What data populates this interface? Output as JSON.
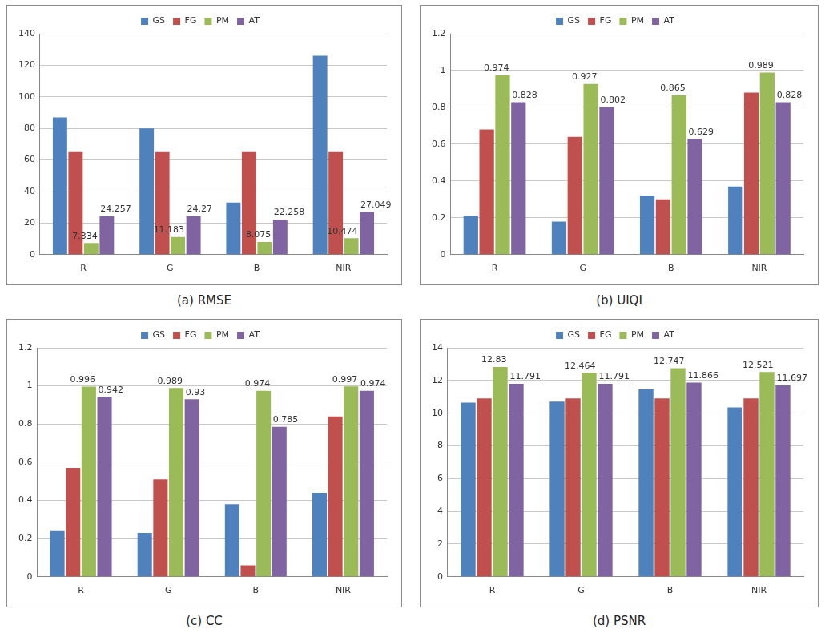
{
  "chart_data": [
    {
      "type": "bar",
      "title": "(a) RMSE",
      "categories": [
        "R",
        "G",
        "B",
        "NIR"
      ],
      "series": [
        {
          "name": "GS",
          "color": "#4f81bd",
          "values": [
            87,
            80,
            33,
            126
          ]
        },
        {
          "name": "FG",
          "color": "#c0504d",
          "values": [
            65,
            65,
            65,
            65
          ]
        },
        {
          "name": "PM",
          "color": "#9bbb59",
          "values": [
            7.334,
            11.183,
            8.075,
            10.474
          ],
          "data_labels": true
        },
        {
          "name": "AT",
          "color": "#8064a2",
          "values": [
            24.257,
            24.27,
            22.258,
            27.049
          ],
          "data_labels": true
        }
      ],
      "ylim": [
        0,
        140
      ],
      "yticks": [
        0,
        20,
        40,
        60,
        80,
        100,
        120,
        140
      ],
      "grid": true,
      "legend": "top"
    },
    {
      "type": "bar",
      "title": "(b) UIQI",
      "categories": [
        "R",
        "G",
        "B",
        "NIR"
      ],
      "series": [
        {
          "name": "GS",
          "color": "#4f81bd",
          "values": [
            0.21,
            0.18,
            0.32,
            0.37
          ]
        },
        {
          "name": "FG",
          "color": "#c0504d",
          "values": [
            0.68,
            0.64,
            0.3,
            0.88
          ]
        },
        {
          "name": "PM",
          "color": "#9bbb59",
          "values": [
            0.974,
            0.927,
            0.865,
            0.989
          ],
          "data_labels": true
        },
        {
          "name": "AT",
          "color": "#8064a2",
          "values": [
            0.828,
            0.802,
            0.629,
            0.828
          ],
          "data_labels": true
        }
      ],
      "ylim": [
        0,
        1.2
      ],
      "yticks": [
        0,
        0.2,
        0.4,
        0.6,
        0.8,
        1,
        1.2
      ],
      "grid": true,
      "legend": "top"
    },
    {
      "type": "bar",
      "title": "(c) CC",
      "categories": [
        "R",
        "G",
        "B",
        "NIR"
      ],
      "series": [
        {
          "name": "GS",
          "color": "#4f81bd",
          "values": [
            0.24,
            0.23,
            0.38,
            0.44
          ]
        },
        {
          "name": "FG",
          "color": "#c0504d",
          "values": [
            0.57,
            0.51,
            0.06,
            0.84
          ]
        },
        {
          "name": "PM",
          "color": "#9bbb59",
          "values": [
            0.996,
            0.989,
            0.974,
            0.997
          ],
          "data_labels": true
        },
        {
          "name": "AT",
          "color": "#8064a2",
          "values": [
            0.942,
            0.93,
            0.785,
            0.974
          ],
          "data_labels": true
        }
      ],
      "ylim": [
        0,
        1.2
      ],
      "yticks": [
        0,
        0.2,
        0.4,
        0.6,
        0.8,
        1,
        1.2
      ],
      "grid": true,
      "legend": "top"
    },
    {
      "type": "bar",
      "title": "(d) PSNR",
      "categories": [
        "R",
        "G",
        "B",
        "NIR"
      ],
      "series": [
        {
          "name": "GS",
          "color": "#4f81bd",
          "values": [
            10.65,
            10.7,
            11.45,
            10.35
          ]
        },
        {
          "name": "FG",
          "color": "#c0504d",
          "values": [
            10.9,
            10.9,
            10.9,
            10.9
          ]
        },
        {
          "name": "PM",
          "color": "#9bbb59",
          "values": [
            12.83,
            12.464,
            12.747,
            12.521
          ],
          "data_labels": true
        },
        {
          "name": "AT",
          "color": "#8064a2",
          "values": [
            11.791,
            11.791,
            11.866,
            11.697
          ],
          "data_labels": true
        }
      ],
      "ylim": [
        0,
        14
      ],
      "yticks": [
        0,
        2,
        4,
        6,
        8,
        10,
        12,
        14
      ],
      "grid": true,
      "legend": "top"
    }
  ]
}
